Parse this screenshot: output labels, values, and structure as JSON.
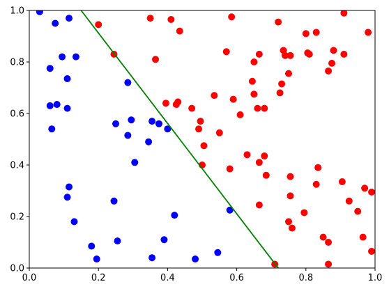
{
  "chart_data": {
    "type": "scatter",
    "title": "",
    "xlabel": "",
    "ylabel": "",
    "xlim": [
      0.0,
      1.0
    ],
    "ylim": [
      0.0,
      1.0
    ],
    "grid": false,
    "x_ticks": [
      "0.0",
      "0.2",
      "0.4",
      "0.6",
      "0.8",
      "1.0"
    ],
    "y_ticks": [
      "0.0",
      "0.2",
      "0.4",
      "0.6",
      "0.8",
      "1.0"
    ],
    "series": [
      {
        "color": "#0000ff",
        "marker": "circle",
        "points": [
          [
            0.03,
            0.995
          ],
          [
            0.075,
            0.95
          ],
          [
            0.115,
            0.97
          ],
          [
            0.095,
            0.82
          ],
          [
            0.135,
            0.82
          ],
          [
            0.06,
            0.775
          ],
          [
            0.11,
            0.735
          ],
          [
            0.285,
            0.72
          ],
          [
            0.06,
            0.63
          ],
          [
            0.08,
            0.635
          ],
          [
            0.11,
            0.62
          ],
          [
            0.065,
            0.54
          ],
          [
            0.25,
            0.56
          ],
          [
            0.295,
            0.575
          ],
          [
            0.355,
            0.57
          ],
          [
            0.375,
            0.56
          ],
          [
            0.4,
            0.54
          ],
          [
            0.285,
            0.515
          ],
          [
            0.345,
            0.49
          ],
          [
            0.305,
            0.41
          ],
          [
            0.115,
            0.315
          ],
          [
            0.11,
            0.275
          ],
          [
            0.245,
            0.26
          ],
          [
            0.58,
            0.225
          ],
          [
            0.42,
            0.205
          ],
          [
            0.13,
            0.18
          ],
          [
            0.255,
            0.105
          ],
          [
            0.39,
            0.11
          ],
          [
            0.18,
            0.085
          ],
          [
            0.545,
            0.06
          ],
          [
            0.195,
            0.035
          ],
          [
            0.355,
            0.04
          ],
          [
            0.48,
            0.035
          ]
        ]
      },
      {
        "color": "#ff0000",
        "marker": "circle",
        "points": [
          [
            0.2,
            0.945
          ],
          [
            0.35,
            0.97
          ],
          [
            0.41,
            0.965
          ],
          [
            0.435,
            0.92
          ],
          [
            0.585,
            0.975
          ],
          [
            0.72,
            0.955
          ],
          [
            0.91,
            0.99
          ],
          [
            0.8,
            0.91
          ],
          [
            0.83,
            0.915
          ],
          [
            0.98,
            0.915
          ],
          [
            0.245,
            0.83
          ],
          [
            0.365,
            0.81
          ],
          [
            0.57,
            0.84
          ],
          [
            0.665,
            0.83
          ],
          [
            0.735,
            0.845
          ],
          [
            0.74,
            0.825
          ],
          [
            0.755,
            0.825
          ],
          [
            0.805,
            0.835
          ],
          [
            0.81,
            0.83
          ],
          [
            0.88,
            0.845
          ],
          [
            0.91,
            0.83
          ],
          [
            0.65,
            0.8
          ],
          [
            0.875,
            0.795
          ],
          [
            0.865,
            0.765
          ],
          [
            0.75,
            0.755
          ],
          [
            0.645,
            0.725
          ],
          [
            0.73,
            0.715
          ],
          [
            0.65,
            0.675
          ],
          [
            0.725,
            0.68
          ],
          [
            0.535,
            0.67
          ],
          [
            0.59,
            0.655
          ],
          [
            0.395,
            0.64
          ],
          [
            0.425,
            0.635
          ],
          [
            0.43,
            0.645
          ],
          [
            0.66,
            0.62
          ],
          [
            0.68,
            0.62
          ],
          [
            0.47,
            0.62
          ],
          [
            0.61,
            0.595
          ],
          [
            0.495,
            0.57
          ],
          [
            0.49,
            0.54
          ],
          [
            0.55,
            0.525
          ],
          [
            0.505,
            0.475
          ],
          [
            0.63,
            0.44
          ],
          [
            0.68,
            0.435
          ],
          [
            0.665,
            0.41
          ],
          [
            0.835,
            0.39
          ],
          [
            0.5,
            0.4
          ],
          [
            0.58,
            0.385
          ],
          [
            0.685,
            0.36
          ],
          [
            0.755,
            0.355
          ],
          [
            0.905,
            0.335
          ],
          [
            0.83,
            0.325
          ],
          [
            0.97,
            0.31
          ],
          [
            0.99,
            0.295
          ],
          [
            0.755,
            0.28
          ],
          [
            0.925,
            0.26
          ],
          [
            0.665,
            0.245
          ],
          [
            0.795,
            0.215
          ],
          [
            0.95,
            0.22
          ],
          [
            0.75,
            0.18
          ],
          [
            0.76,
            0.155
          ],
          [
            0.85,
            0.12
          ],
          [
            0.965,
            0.12
          ],
          [
            0.865,
            0.1
          ],
          [
            0.99,
            0.065
          ],
          [
            0.865,
            0.015
          ],
          [
            0.71,
            0.015
          ]
        ]
      }
    ],
    "lines": [
      {
        "color": "#008000",
        "x": [
          0.15,
          0.72
        ],
        "y": [
          1.0,
          0.0
        ]
      }
    ]
  }
}
